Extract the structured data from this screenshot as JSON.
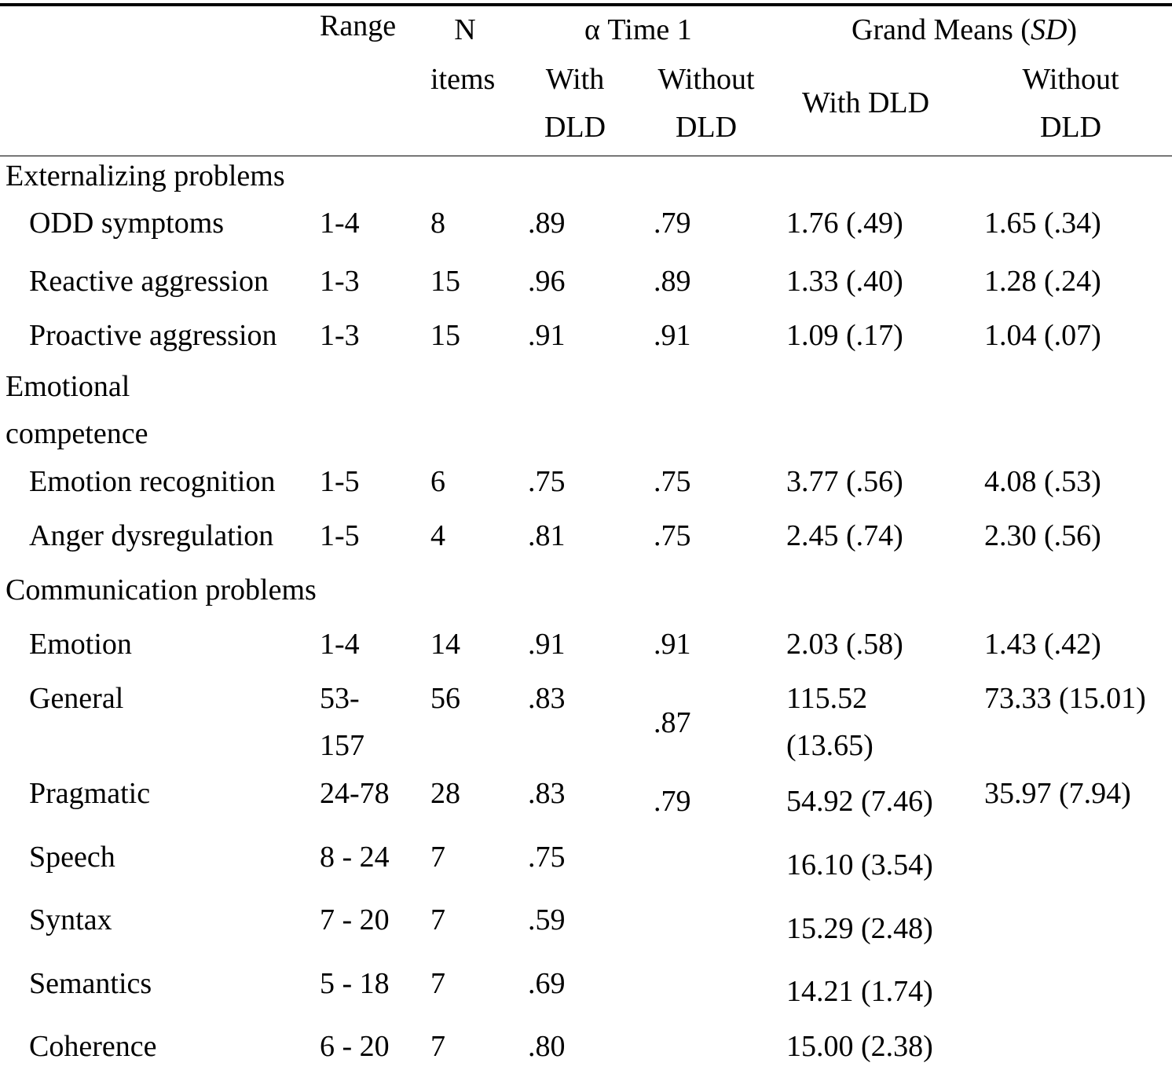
{
  "header": {
    "range": "Range",
    "n_items_line1": "N",
    "n_items_line2": "items",
    "alpha_group": "α Time 1",
    "grand_means_prefix": "Grand Means (",
    "grand_means_sd": "SD",
    "grand_means_suffix": ")",
    "alpha_with_line1": "With",
    "alpha_with_line2": "DLD",
    "alpha_without_line1": "Without",
    "alpha_without_line2": "DLD",
    "means_with": "With DLD",
    "means_without_line1": "Without",
    "means_without_line2": "DLD"
  },
  "sections": [
    {
      "title": "Externalizing problems",
      "rows": [
        {
          "label": "ODD symptoms",
          "range": "1-4",
          "n": "8",
          "alpha_with": ".89",
          "alpha_without": ".79",
          "mean_with": "1.76 (.49)",
          "mean_without": "1.65 (.34)"
        },
        {
          "label": "Reactive aggression",
          "range": "1-3",
          "n": "15",
          "alpha_with": ".96",
          "alpha_without": ".89",
          "mean_with": "1.33 (.40)",
          "mean_without": "1.28 (.24)"
        },
        {
          "label": "Proactive aggression",
          "range": "1-3",
          "n": "15",
          "alpha_with": ".91",
          "alpha_without": ".91",
          "mean_with": "1.09 (.17)",
          "mean_without": "1.04 (.07)"
        }
      ]
    },
    {
      "title_line1": "Emotional",
      "title_line2": "competence",
      "rows": [
        {
          "label": "Emotion recognition",
          "range": "1-5",
          "n": "6",
          "alpha_with": ".75",
          "alpha_without": ".75",
          "mean_with": "3.77 (.56)",
          "mean_without": "4.08 (.53)"
        },
        {
          "label": "Anger dysregulation",
          "range": "1-5",
          "n": "4",
          "alpha_with": ".81",
          "alpha_without": ".75",
          "mean_with": "2.45 (.74)",
          "mean_without": "2.30 (.56)"
        }
      ]
    },
    {
      "title": "Communication problems",
      "rows": [
        {
          "label": "Emotion",
          "range": "1-4",
          "n": "14",
          "alpha_with": ".91",
          "alpha_without": ".91",
          "mean_with": "2.03 (.58)",
          "mean_without": "1.43 (.42)"
        },
        {
          "label": "General",
          "range_line1": "53-",
          "range_line2": "157",
          "n": "56",
          "alpha_with": ".83",
          "alpha_without": ".87",
          "mean_with_line1": "115.52",
          "mean_with_line2": "(13.65)",
          "mean_without": "73.33 (15.01)"
        },
        {
          "label": "Pragmatic",
          "range": "24-78",
          "n": "28",
          "alpha_with": ".83",
          "alpha_without": ".79",
          "mean_with": "54.92 (7.46)",
          "mean_without": "35.97 (7.94)"
        },
        {
          "label": "Speech",
          "range": "8 - 24",
          "n": "7",
          "alpha_with": ".75",
          "mean_with": "16.10 (3.54)"
        },
        {
          "label": "Syntax",
          "range": "7 - 20",
          "n": "7",
          "alpha_with": ".59",
          "mean_with": "15.29 (2.48)"
        },
        {
          "label": "Semantics",
          "range": "5 - 18",
          "n": "7",
          "alpha_with": ".69",
          "mean_with": "14.21 (1.74)"
        },
        {
          "label": "Coherence",
          "range": "6 - 20",
          "n": "7",
          "alpha_with": ".80",
          "mean_with": "15.00 (2.38)"
        }
      ]
    }
  ]
}
